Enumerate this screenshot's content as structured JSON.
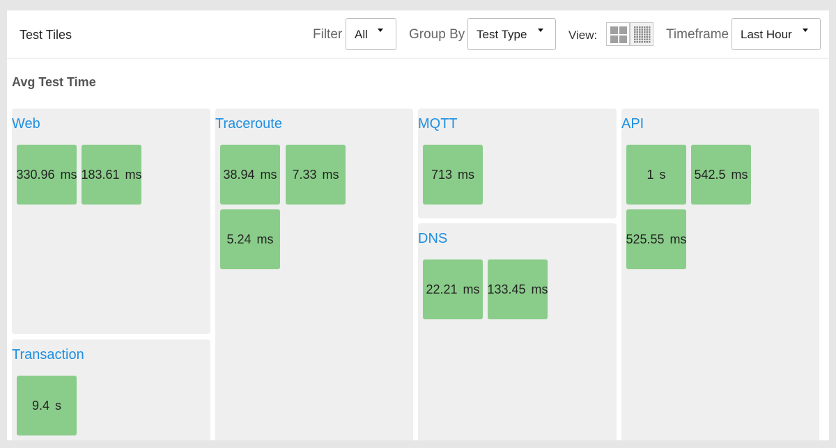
{
  "header": {
    "title": "Test Tiles",
    "filter": {
      "label": "Filter",
      "value": "All"
    },
    "group_by": {
      "label": "Group By",
      "value": "Test Type"
    },
    "view": {
      "label": "View:",
      "options": [
        "large-tiles-icon",
        "small-tiles-icon"
      ],
      "selected": "small-tiles-icon"
    },
    "timeframe": {
      "label": "Timeframe",
      "value": "Last Hour"
    }
  },
  "section_title": "Avg Test Time",
  "groups": {
    "web": {
      "title": "Web",
      "tiles": [
        "330.96 ms",
        "183.61 ms"
      ]
    },
    "transaction": {
      "title": "Transaction",
      "tiles": [
        "9.4 s"
      ]
    },
    "traceroute": {
      "title": "Traceroute",
      "tiles": [
        "38.94 ms",
        "7.33 ms",
        "5.24 ms"
      ]
    },
    "mqtt": {
      "title": "MQTT",
      "tiles": [
        "713 ms"
      ]
    },
    "dns": {
      "title": "DNS",
      "tiles": [
        "22.21 ms",
        "133.45 ms"
      ]
    },
    "api": {
      "title": "API",
      "tiles": [
        "1 s",
        "542.5 ms",
        "525.55 ms"
      ]
    }
  },
  "colors": {
    "tile_ok": "#8acd8a",
    "group_bg": "#efefef",
    "link": "#1e8fe0"
  }
}
